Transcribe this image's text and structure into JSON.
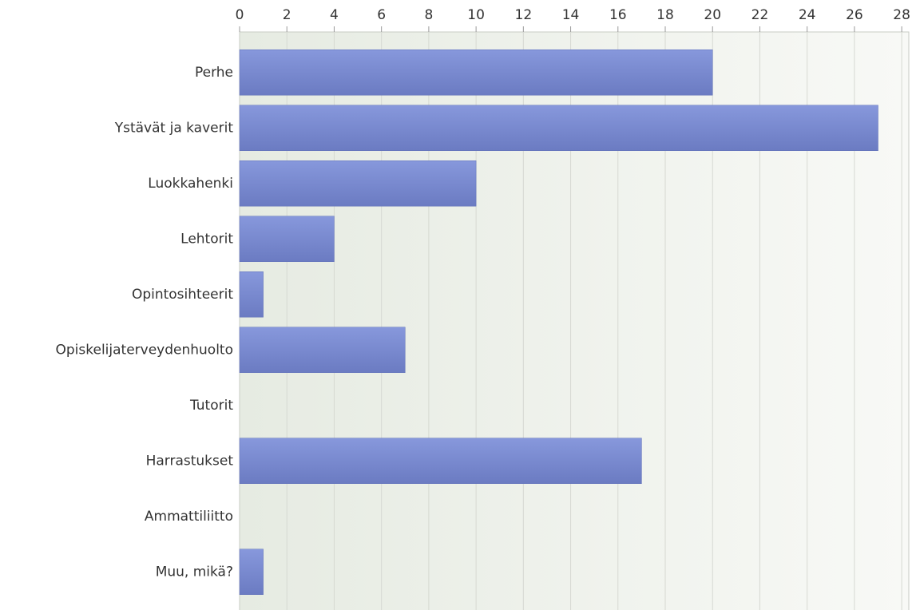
{
  "chart_data": {
    "type": "bar",
    "orientation": "horizontal",
    "categories": [
      "Perhe",
      "Ystävät ja kaverit",
      "Luokkahenki",
      "Lehtorit",
      "Opintosihteerit",
      "Opiskelijaterveydenhuolto",
      "Tutorit",
      "Harrastukset",
      "Ammattiliitto",
      "Muu, mikä?"
    ],
    "values": [
      20,
      27,
      10,
      4,
      1,
      7,
      0,
      17,
      0,
      1
    ],
    "color": "#7a8bd4",
    "xlim": [
      0,
      28.3
    ],
    "xticks": [
      0,
      2,
      4,
      6,
      8,
      10,
      12,
      14,
      16,
      18,
      20,
      22,
      24,
      26,
      28
    ],
    "grid": true
  }
}
